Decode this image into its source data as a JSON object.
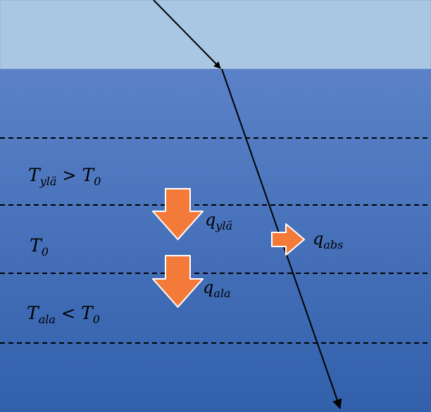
{
  "colors": {
    "air_fill": "#a9c6e3",
    "water_top": "#5b82c8",
    "water_bottom": "#3260ab",
    "arrow_fill": "#f47a3a",
    "arrow_stroke": "#ffffff",
    "dash": "#000000",
    "ray": "#000000"
  },
  "layers": {
    "upper": {
      "T_base": "T",
      "T_sub": "ylä",
      "op": ">",
      "ref_base": "T",
      "ref_sub": "0"
    },
    "middle": {
      "T_base": "T",
      "T_sub": "0"
    },
    "lower": {
      "T_base": "T",
      "T_sub": "ala",
      "op": "<",
      "ref_base": "T",
      "ref_sub": "0"
    }
  },
  "fluxes": {
    "upper": {
      "base": "q",
      "sub": "ylä"
    },
    "lower": {
      "base": "q",
      "sub": "ala"
    },
    "absorbed": {
      "base": "q",
      "sub": "abs"
    }
  },
  "icons": [
    "incident-ray",
    "refracted-ray",
    "down-arrow",
    "right-arrow"
  ]
}
